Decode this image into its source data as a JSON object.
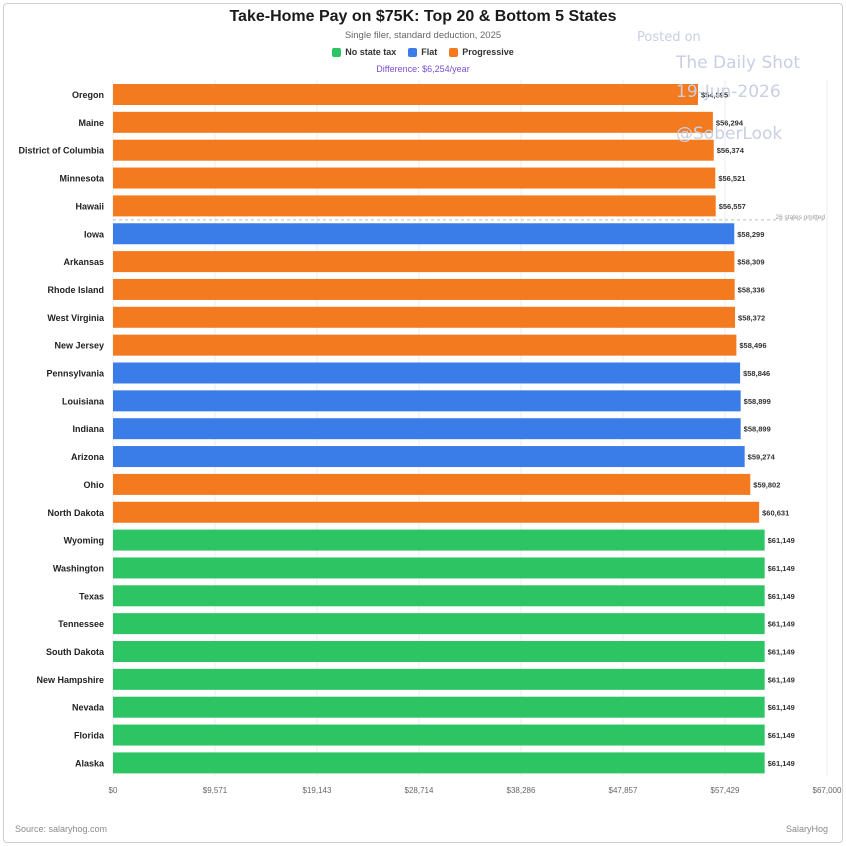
{
  "header": {
    "title": "Take-Home Pay on $75K: Top 20 & Bottom 5 States",
    "subtitle": "Single filer, standard deduction, 2025",
    "difference": "Difference: $6,254/year"
  },
  "footer": {
    "source": "Source: salaryhog.com",
    "brand": "SalaryHog"
  },
  "watermark": {
    "line1": "Posted on",
    "line2": "The Daily Shot",
    "line3": "19-Jun-2026",
    "line4": "@SoberLook"
  },
  "colors": {
    "No state tax": "#2dc563",
    "Flat": "#3b7de8",
    "Progressive": "#f47a1f"
  },
  "chart_data": {
    "type": "bar",
    "orientation": "horizontal",
    "legend": [
      "No state tax",
      "Flat",
      "Progressive"
    ],
    "legend_position": "top",
    "omitted_note": "26 states omitted",
    "xlim": [
      0,
      67000
    ],
    "x_ticks": [
      "$0",
      "$9,571",
      "$19,143",
      "$28,714",
      "$38,286",
      "$47,857",
      "$57,429",
      "$67,000"
    ],
    "x_tick_values": [
      0,
      9571,
      19143,
      28714,
      38286,
      47857,
      57429,
      67000
    ],
    "bars": [
      {
        "state": "Oregon",
        "value": 54895,
        "label": "$54,895",
        "category": "Progressive"
      },
      {
        "state": "Maine",
        "value": 56294,
        "label": "$56,294",
        "category": "Progressive"
      },
      {
        "state": "District of Columbia",
        "value": 56374,
        "label": "$56,374",
        "category": "Progressive"
      },
      {
        "state": "Minnesota",
        "value": 56521,
        "label": "$56,521",
        "category": "Progressive"
      },
      {
        "state": "Hawaii",
        "value": 56557,
        "label": "$56,557",
        "category": "Progressive"
      },
      {
        "state": "Iowa",
        "value": 58299,
        "label": "$58,299",
        "category": "Flat"
      },
      {
        "state": "Arkansas",
        "value": 58309,
        "label": "$58,309",
        "category": "Progressive"
      },
      {
        "state": "Rhode Island",
        "value": 58336,
        "label": "$58,336",
        "category": "Progressive"
      },
      {
        "state": "West Virginia",
        "value": 58372,
        "label": "$58,372",
        "category": "Progressive"
      },
      {
        "state": "New Jersey",
        "value": 58496,
        "label": "$58,496",
        "category": "Progressive"
      },
      {
        "state": "Pennsylvania",
        "value": 58846,
        "label": "$58,846",
        "category": "Flat"
      },
      {
        "state": "Louisiana",
        "value": 58899,
        "label": "$58,899",
        "category": "Flat"
      },
      {
        "state": "Indiana",
        "value": 58899,
        "label": "$58,899",
        "category": "Flat"
      },
      {
        "state": "Arizona",
        "value": 59274,
        "label": "$59,274",
        "category": "Flat"
      },
      {
        "state": "Ohio",
        "value": 59802,
        "label": "$59,802",
        "category": "Progressive"
      },
      {
        "state": "North Dakota",
        "value": 60631,
        "label": "$60,631",
        "category": "Progressive"
      },
      {
        "state": "Wyoming",
        "value": 61149,
        "label": "$61,149",
        "category": "No state tax"
      },
      {
        "state": "Washington",
        "value": 61149,
        "label": "$61,149",
        "category": "No state tax"
      },
      {
        "state": "Texas",
        "value": 61149,
        "label": "$61,149",
        "category": "No state tax"
      },
      {
        "state": "Tennessee",
        "value": 61149,
        "label": "$61,149",
        "category": "No state tax"
      },
      {
        "state": "South Dakota",
        "value": 61149,
        "label": "$61,149",
        "category": "No state tax"
      },
      {
        "state": "New Hampshire",
        "value": 61149,
        "label": "$61,149",
        "category": "No state tax"
      },
      {
        "state": "Nevada",
        "value": 61149,
        "label": "$61,149",
        "category": "No state tax"
      },
      {
        "state": "Florida",
        "value": 61149,
        "label": "$61,149",
        "category": "No state tax"
      },
      {
        "state": "Alaska",
        "value": 61149,
        "label": "$61,149",
        "category": "No state tax"
      }
    ]
  }
}
